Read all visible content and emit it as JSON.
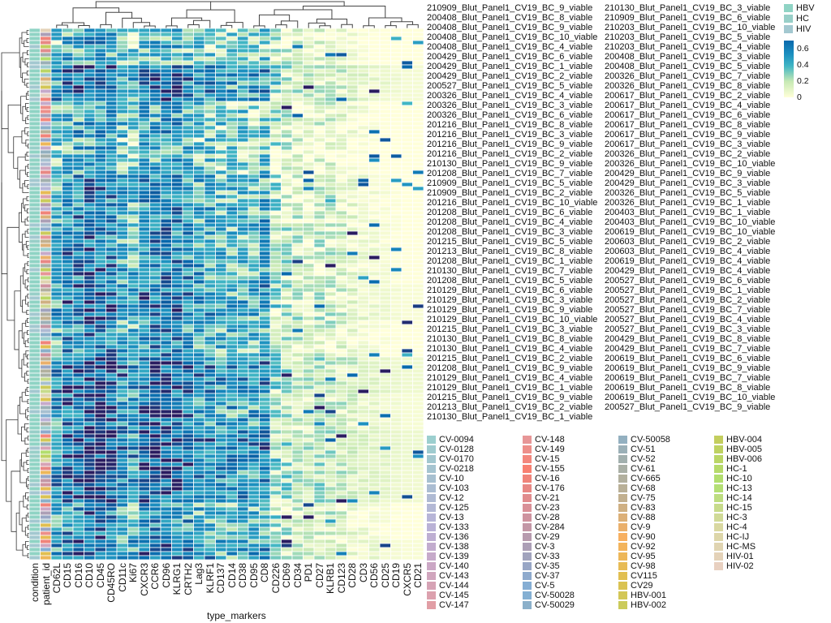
{
  "chart_data": {
    "type": "heatmap",
    "xlabel": "type_markers",
    "annotation_columns": [
      "condition",
      "patient_id"
    ],
    "columns": [
      "CD62L",
      "CD15",
      "CD16",
      "CD10",
      "CD45",
      "CD45RO",
      "CD11c",
      "Ki67",
      "CXCR3",
      "CCR6",
      "CD96",
      "KLRG1",
      "CRTH2",
      "Lag3",
      "KLRF1",
      "CD137",
      "CD14",
      "CD38",
      "CD95",
      "CD8",
      "CD226",
      "CD69",
      "CD34",
      "PD1",
      "CD27",
      "KLRB1",
      "CD123",
      "CD28",
      "CD3",
      "CD56",
      "CD25",
      "CD19",
      "CXCR5",
      "CD21"
    ],
    "column_mean_values": [
      0.33,
      0.45,
      0.45,
      0.5,
      0.5,
      0.45,
      0.35,
      0.3,
      0.45,
      0.45,
      0.45,
      0.45,
      0.4,
      0.35,
      0.35,
      0.3,
      0.3,
      0.3,
      0.3,
      0.35,
      0.15,
      0.12,
      0.1,
      0.08,
      0.1,
      0.1,
      0.08,
      0.06,
      0.04,
      0.03,
      0.02,
      0.01,
      0.0,
      0.0
    ],
    "color_scale": {
      "min": 0,
      "max": 0.7,
      "ticks": [
        "0",
        "0.2",
        "0.4",
        "0.6"
      ],
      "colors": [
        "#ffffd9",
        "#c7e9b4",
        "#41b6c4",
        "#1d91c0",
        "#0868ac",
        "#2a1c60"
      ]
    },
    "condition_legend": [
      {
        "label": "HBV",
        "color": "#8fd3c4"
      },
      {
        "label": "HC",
        "color": "#98cfc8"
      },
      {
        "label": "HIV",
        "color": "#a3c8d0"
      }
    ],
    "patient_legend": [
      "CV-0094",
      "CV-0128",
      "CV-0170",
      "CV-0218",
      "CV-10",
      "CV-103",
      "CV-12",
      "CV-125",
      "CV-13",
      "CV-133",
      "CV-136",
      "CV-138",
      "CV-139",
      "CV-140",
      "CV-143",
      "CV-144",
      "CV-145",
      "CV-147",
      "CV-148",
      "CV-149",
      "CV-15",
      "CV-155",
      "CV-16",
      "CV-176",
      "CV-21",
      "CV-23",
      "CV-28",
      "CV-284",
      "CV-29",
      "CV-3",
      "CV-33",
      "CV-35",
      "CV-37",
      "CV-5",
      "CV-50028",
      "CV-50029",
      "CV-50058",
      "CV-51",
      "CV-52",
      "CV-61",
      "CV-665",
      "CV-68",
      "CV-75",
      "CV-83",
      "CV-88",
      "CV-9",
      "CV-90",
      "CV-92",
      "CV-95",
      "CV-98",
      "CV115",
      "CV29",
      "HBV-001",
      "HBV-002",
      "HBV-004",
      "HBV-005",
      "HBV-006",
      "HC-1",
      "HC-10",
      "HC-13",
      "HC-14",
      "HC-15",
      "HC-3",
      "HC-4",
      "HC-IJ",
      "HC-MS",
      "HIV-01",
      "HIV-02"
    ],
    "patient_color_stops": [
      "#9ccfcf",
      "#a8bfd0",
      "#b8b4d8",
      "#c8a8c8",
      "#e0a0a8",
      "#f88070",
      "#d89098",
      "#a8a0b8",
      "#80b0d8",
      "#a0b0b0",
      "#c0b090",
      "#f8b060",
      "#e0c050",
      "#c0d060",
      "#b0e070",
      "#d8d8a0",
      "#e8d0c0"
    ],
    "row_labels": [
      "210909_Blut_Panel1_CV19_BC_9_viable",
      "200408_Blut_Panel1_CV19_BC_8_viable",
      "200408_Blut_Panel1_CV19_BC_9_viable",
      "200408_Blut_Panel1_CV19_BC_10_viable",
      "200408_Blut_Panel1_CV19_BC_4_viable",
      "200429_Blut_Panel1_CV19_BC_6_viable",
      "200429_Blut_Panel1_CV19_BC_1_viable",
      "200429_Blut_Panel1_CV19_BC_2_viable",
      "200527_Blut_Panel1_CV19_BC_5_viable",
      "200326_Blut_Panel1_CV19_BC_4_viable",
      "200326_Blut_Panel1_CV19_BC_3_viable",
      "200326_Blut_Panel1_CV19_BC_6_viable",
      "201216_Blut_Panel1_CV19_BC_8_viable",
      "201216_Blut_Panel1_CV19_BC_3_viable",
      "201216_Blut_Panel1_CV19_BC_9_viable",
      "201216_Blut_Panel1_CV19_BC_2_viable",
      "210130_Blut_Panel1_CV19_BC_9_viable",
      "201208_Blut_Panel1_CV19_BC_7_viable",
      "210909_Blut_Panel1_CV19_BC_5_viable",
      "210909_Blut_Panel1_CV19_BC_2_viable",
      "201216_Blut_Panel1_CV19_BC_10_viable",
      "201208_Blut_Panel1_CV19_BC_6_viable",
      "201208_Blut_Panel1_CV19_BC_4_viable",
      "201208_Blut_Panel1_CV19_BC_3_viable",
      "201215_Blut_Panel1_CV19_BC_5_viable",
      "201213_Blut_Panel1_CV19_BC_8_viable",
      "201208_Blut_Panel1_CV19_BC_1_viable",
      "210130_Blut_Panel1_CV19_BC_7_viable",
      "201208_Blut_Panel1_CV19_BC_5_viable",
      "210129_Blut_Panel1_CV19_BC_6_viable",
      "210129_Blut_Panel1_CV19_BC_3_viable",
      "210129_Blut_Panel1_CV19_BC_9_viable",
      "210129_Blut_Panel1_CV19_BC_10_viable",
      "201215_Blut_Panel1_CV19_BC_3_viable",
      "210130_Blut_Panel1_CV19_BC_8_viable",
      "210130_Blut_Panel1_CV19_BC_4_viable",
      "201215_Blut_Panel1_CV19_BC_2_viable",
      "201208_Blut_Panel1_CV19_BC_9_viable",
      "210129_Blut_Panel1_CV19_BC_4_viable",
      "210129_Blut_Panel1_CV19_BC_1_viable",
      "201215_Blut_Panel1_CV19_BC_9_viable",
      "201213_Blut_Panel1_CV19_BC_2_viable",
      "210130_Blut_Panel1_CV19_BC_1_viable",
      "210130_Blut_Panel1_CV19_BC_3_viable",
      "210909_Blut_Panel1_CV19_BC_6_viable",
      "210203_Blut_Panel1_CV19_BC_10_viable",
      "210203_Blut_Panel1_CV19_BC_5_viable",
      "210203_Blut_Panel1_CV19_BC_4_viable",
      "200408_Blut_Panel1_CV19_BC_3_viable",
      "200408_Blut_Panel1_CV19_BC_5_viable",
      "200326_Blut_Panel1_CV19_BC_7_viable",
      "200326_Blut_Panel1_CV19_BC_8_viable",
      "200617_Blut_Panel1_CV19_BC_2_viable",
      "200617_Blut_Panel1_CV19_BC_4_viable",
      "200617_Blut_Panel1_CV19_BC_6_viable",
      "200617_Blut_Panel1_CV19_BC_8_viable",
      "200617_Blut_Panel1_CV19_BC_9_viable",
      "200617_Blut_Panel1_CV19_BC_3_viable",
      "200326_Blut_Panel1_CV19_BC_2_viable",
      "200326_Blut_Panel1_CV19_BC_10_viable",
      "200429_Blut_Panel1_CV19_BC_9_viable",
      "200429_Blut_Panel1_CV19_BC_3_viable",
      "200326_Blut_Panel1_CV19_BC_5_viable",
      "200326_Blut_Panel1_CV19_BC_1_viable",
      "200403_Blut_Panel1_CV19_BC_1_viable",
      "200403_Blut_Panel1_CV19_BC_10_viable",
      "200619_Blut_Panel1_CV19_BC_10_viable",
      "200603_Blut_Panel1_CV19_BC_2_viable",
      "200603_Blut_Panel1_CV19_BC_4_viable",
      "200619_Blut_Panel1_CV19_BC_4_viable",
      "200429_Blut_Panel1_CV19_BC_4_viable",
      "200527_Blut_Panel1_CV19_BC_6_viable",
      "200527_Blut_Panel1_CV19_BC_1_viable",
      "200527_Blut_Panel1_CV19_BC_2_viable",
      "200527_Blut_Panel1_CV19_BC_7_viable",
      "200527_Blut_Panel1_CV19_BC_4_viable",
      "200527_Blut_Panel1_CV19_BC_3_viable",
      "200429_Blut_Panel1_CV19_BC_8_viable",
      "200429_Blut_Panel1_CV19_BC_7_viable",
      "200619_Blut_Panel1_CV19_BC_6_viable",
      "200619_Blut_Panel1_CV19_BC_9_viable",
      "200619_Blut_Panel1_CV19_BC_7_viable",
      "200619_Blut_Panel1_CV19_BC_8_viable",
      "200619_Blut_Panel1_CV19_BC_10_viable",
      "200527_Blut_Panel1_CV19_BC_9_viable"
    ]
  }
}
